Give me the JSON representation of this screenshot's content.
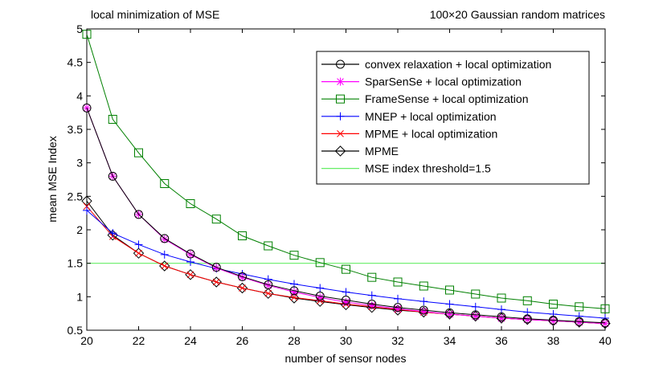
{
  "chart_data": {
    "type": "line",
    "title_left": "local minimization of MSE",
    "title_right": "100×20 Gaussian random matrices",
    "xlabel": "number of sensor nodes",
    "ylabel": "mean MSE Index",
    "xlim": [
      20,
      40
    ],
    "ylim": [
      0.5,
      5
    ],
    "xticks": [
      20,
      22,
      24,
      26,
      28,
      30,
      32,
      34,
      36,
      38,
      40
    ],
    "xtick_labels": [
      "20",
      "22",
      "24",
      "26",
      "28",
      "30",
      "32",
      "34",
      "36",
      "38",
      "40"
    ],
    "yticks": [
      0.5,
      1,
      1.5,
      2,
      2.5,
      3,
      3.5,
      4,
      4.5,
      5
    ],
    "ytick_labels": [
      "0.5",
      "1",
      "1.5",
      "2",
      "2.5",
      "3",
      "3.5",
      "4",
      "4.5",
      "5"
    ],
    "grid": false,
    "legend_position": "top-right",
    "x": [
      20,
      21,
      22,
      23,
      24,
      25,
      26,
      27,
      28,
      29,
      30,
      31,
      32,
      33,
      34,
      35,
      36,
      37,
      38,
      39,
      40
    ],
    "series": [
      {
        "name": "convex relaxation + local optimization",
        "color": "#000000",
        "marker": "circle",
        "values": [
          3.82,
          2.8,
          2.23,
          1.87,
          1.64,
          1.44,
          1.3,
          1.18,
          1.09,
          1.01,
          0.95,
          0.89,
          0.84,
          0.8,
          0.76,
          0.73,
          0.7,
          0.67,
          0.65,
          0.63,
          0.61
        ]
      },
      {
        "name": "SparSenSe + local optimization",
        "color": "#ff00ff",
        "marker": "asterisk",
        "values": [
          3.82,
          2.8,
          2.23,
          1.86,
          1.63,
          1.43,
          1.29,
          1.17,
          1.07,
          0.99,
          0.92,
          0.87,
          0.82,
          0.78,
          0.74,
          0.71,
          0.68,
          0.66,
          0.64,
          0.62,
          0.6
        ]
      },
      {
        "name": "FrameSense + local optimization",
        "color": "#008000",
        "marker": "square",
        "values": [
          4.92,
          3.65,
          3.15,
          2.69,
          2.39,
          2.16,
          1.91,
          1.76,
          1.62,
          1.51,
          1.41,
          1.29,
          1.22,
          1.16,
          1.1,
          1.04,
          0.98,
          0.94,
          0.89,
          0.85,
          0.82
        ]
      },
      {
        "name": "MNEP + local optimization",
        "color": "#0000ff",
        "marker": "plus",
        "values": [
          2.29,
          1.95,
          1.78,
          1.63,
          1.52,
          1.42,
          1.34,
          1.26,
          1.19,
          1.13,
          1.07,
          1.02,
          0.97,
          0.93,
          0.89,
          0.85,
          0.81,
          0.77,
          0.74,
          0.71,
          0.68
        ]
      },
      {
        "name": "MPME + local optimization",
        "color": "#ff0000",
        "marker": "x",
        "values": [
          2.35,
          1.9,
          1.65,
          1.46,
          1.33,
          1.22,
          1.13,
          1.05,
          0.99,
          0.94,
          0.89,
          0.85,
          0.81,
          0.77,
          0.74,
          0.71,
          0.68,
          0.66,
          0.64,
          0.62,
          0.6
        ]
      },
      {
        "name": "MPME",
        "color": "#000000",
        "marker": "diamond",
        "values": [
          2.43,
          1.92,
          1.65,
          1.46,
          1.33,
          1.22,
          1.13,
          1.05,
          0.98,
          0.93,
          0.88,
          0.84,
          0.8,
          0.77,
          0.74,
          0.71,
          0.68,
          0.66,
          0.64,
          0.62,
          0.6
        ]
      }
    ],
    "threshold": {
      "name": "MSE index threshold=1.5",
      "color": "#66ee66",
      "value": 1.5
    }
  }
}
